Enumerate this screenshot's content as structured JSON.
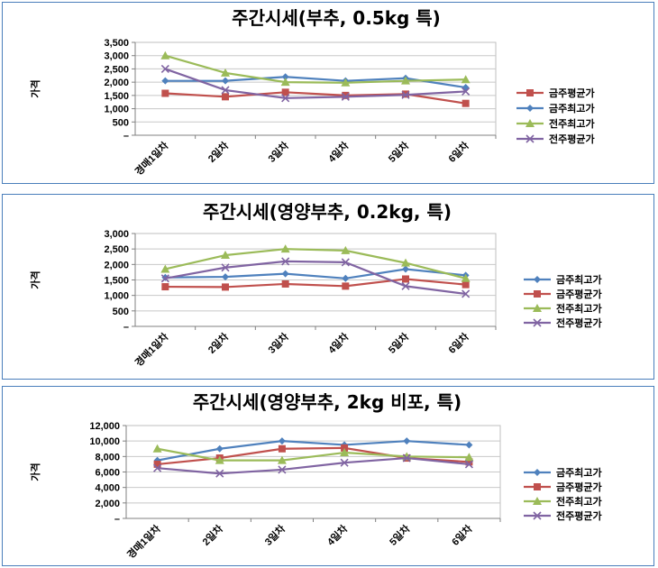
{
  "chart_data": [
    {
      "type": "line",
      "title": "주간시세(부추, 0.5kg 특)",
      "ylabel": "가격",
      "ylim": [
        0,
        3500
      ],
      "ytick_step": 500,
      "ytick_labels": [
        "–",
        "500",
        "1,000",
        "1,500",
        "2,000",
        "2,500",
        "3,000",
        "3,500"
      ],
      "categories": [
        "경매1일차",
        "2일차",
        "3일차",
        "4일차",
        "5일차",
        "6일차"
      ],
      "legend_position": "right",
      "grid": true,
      "series": [
        {
          "name": "금주최고가",
          "color": "#4f81bd",
          "marker": "diamond",
          "values": [
            2050,
            2050,
            2200,
            2050,
            2150,
            1800
          ]
        },
        {
          "name": "금주평균가",
          "color": "#c0504d",
          "marker": "square",
          "values": [
            1580,
            1450,
            1620,
            1500,
            1550,
            1200
          ]
        },
        {
          "name": "전주최고가",
          "color": "#9bbb59",
          "marker": "triangle",
          "values": [
            3000,
            2350,
            2000,
            1980,
            2050,
            2100
          ]
        },
        {
          "name": "전주평균가",
          "color": "#8064a2",
          "marker": "x",
          "values": [
            2500,
            1700,
            1400,
            1450,
            1520,
            1650
          ]
        }
      ],
      "legend_order": [
        1,
        0,
        2,
        3
      ]
    },
    {
      "type": "line",
      "title": "주간시세(영양부추, 0.2kg, 특)",
      "ylabel": "가격",
      "ylim": [
        0,
        3000
      ],
      "ytick_step": 500,
      "ytick_labels": [
        "–",
        "500",
        "1,000",
        "1,500",
        "2,000",
        "2,500",
        "3,000"
      ],
      "categories": [
        "경매1일차",
        "2일차",
        "3일차",
        "4일차",
        "5일차",
        "6일차"
      ],
      "legend_position": "right",
      "grid": true,
      "series": [
        {
          "name": "금주최고가",
          "color": "#4f81bd",
          "marker": "diamond",
          "values": [
            1580,
            1600,
            1700,
            1550,
            1850,
            1650
          ]
        },
        {
          "name": "금주평균가",
          "color": "#c0504d",
          "marker": "square",
          "values": [
            1280,
            1270,
            1370,
            1300,
            1530,
            1350
          ]
        },
        {
          "name": "전주최고가",
          "color": "#9bbb59",
          "marker": "triangle",
          "values": [
            1850,
            2300,
            2500,
            2450,
            2050,
            1550
          ]
        },
        {
          "name": "전주평균가",
          "color": "#8064a2",
          "marker": "x",
          "values": [
            1550,
            1900,
            2100,
            2070,
            1300,
            1050
          ]
        }
      ],
      "legend_order": [
        0,
        1,
        2,
        3
      ]
    },
    {
      "type": "line",
      "title": "주간시세(영양부추, 2kg 비포, 특)",
      "ylabel": "가격",
      "ylim": [
        0,
        12000
      ],
      "ytick_step": 2000,
      "ytick_labels": [
        "–",
        "2,000",
        "4,000",
        "6,000",
        "8,000",
        "10,000",
        "12,000"
      ],
      "categories": [
        "경매1일차",
        "2일차",
        "3일차",
        "4일차",
        "5일차",
        "6일차"
      ],
      "legend_position": "right",
      "grid": true,
      "series": [
        {
          "name": "금주최고가",
          "color": "#4f81bd",
          "marker": "diamond",
          "values": [
            7500,
            9000,
            10000,
            9500,
            10000,
            9500
          ]
        },
        {
          "name": "금주평균가",
          "color": "#c0504d",
          "marker": "square",
          "values": [
            7000,
            7800,
            9000,
            9100,
            7800,
            7300
          ]
        },
        {
          "name": "전주최고가",
          "color": "#9bbb59",
          "marker": "triangle",
          "values": [
            9000,
            7500,
            7500,
            8500,
            8000,
            7900
          ]
        },
        {
          "name": "전주평균가",
          "color": "#8064a2",
          "marker": "x",
          "values": [
            6500,
            5800,
            6300,
            7200,
            7800,
            7000
          ]
        }
      ],
      "legend_order": [
        0,
        1,
        2,
        3
      ]
    }
  ]
}
